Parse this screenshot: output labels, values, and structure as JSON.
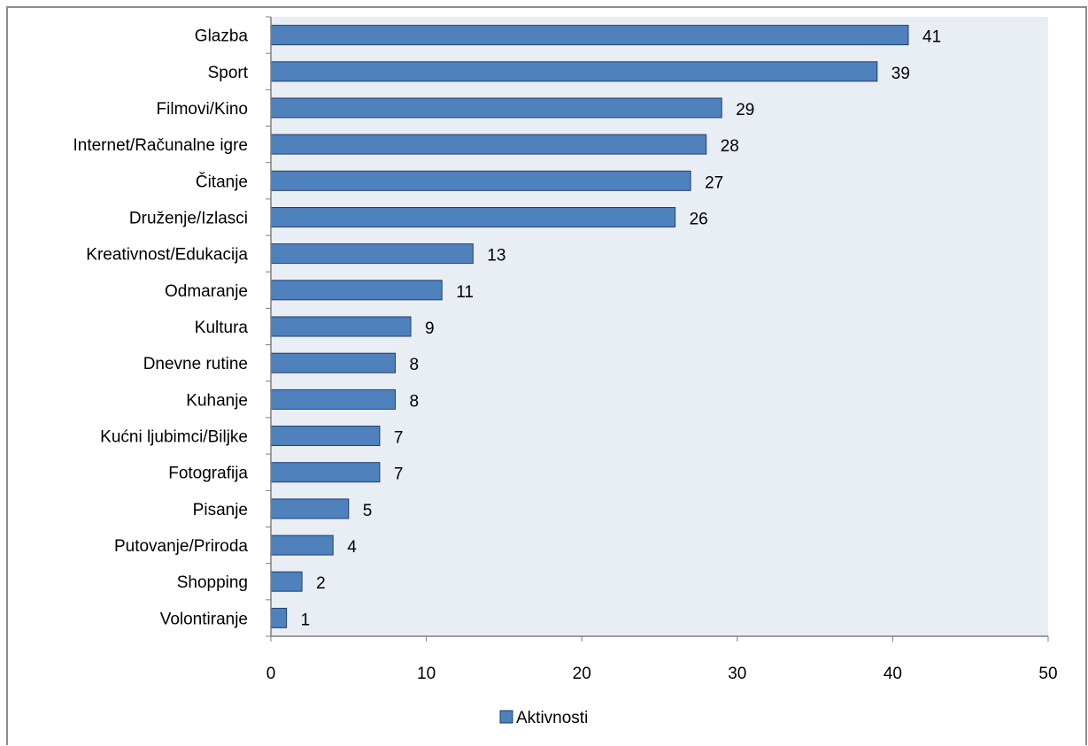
{
  "chart_data": {
    "type": "bar",
    "orientation": "horizontal",
    "categories": [
      "Glazba",
      "Sport",
      "Filmovi/Kino",
      "Internet/Računalne igre",
      "Čitanje",
      "Druženje/Izlasci",
      "Kreativnost/Edukacija",
      "Odmaranje",
      "Kultura",
      "Dnevne rutine",
      "Kuhanje",
      "Kućni ljubimci/Biljke",
      "Fotografija",
      "Pisanje",
      "Putovanje/Priroda",
      "Shopping",
      "Volontiranje"
    ],
    "series": [
      {
        "name": "Aktivnosti",
        "values": [
          41,
          39,
          29,
          28,
          27,
          26,
          13,
          11,
          9,
          8,
          8,
          7,
          7,
          5,
          4,
          2,
          1
        ]
      }
    ],
    "xlim": [
      0,
      50
    ],
    "xticks": [
      0,
      10,
      20,
      30,
      40,
      50
    ],
    "grid": false,
    "data_labels": true,
    "legend_position": "bottom",
    "colors": {
      "bar": "#4f81bd",
      "bar_border": "#1f3f6e",
      "plot_bg": "#e9edf4",
      "axis": "#7f7f7f"
    }
  }
}
